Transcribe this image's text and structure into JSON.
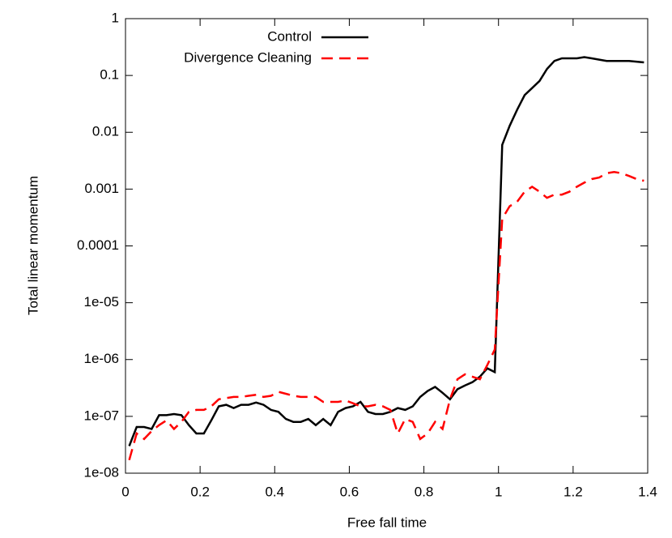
{
  "chart_data": {
    "type": "line",
    "xlabel": "Free fall time",
    "ylabel": "Total linear momentum",
    "xlim": [
      0,
      1.4
    ],
    "xticks": [
      0,
      0.2,
      0.4,
      0.6,
      0.8,
      1,
      1.2,
      1.4
    ],
    "ylim": [
      1e-08,
      1
    ],
    "ylog": true,
    "yticks": [
      {
        "value": 1e-08,
        "label": "1e-08"
      },
      {
        "value": 1e-07,
        "label": "1e-07"
      },
      {
        "value": 1e-06,
        "label": "1e-06"
      },
      {
        "value": 1e-05,
        "label": "1e-05"
      },
      0.0001,
      0.001,
      0.01,
      0.1,
      1
    ],
    "legend": "upper-center",
    "x": [
      0.01,
      0.03,
      0.05,
      0.07,
      0.09,
      0.11,
      0.13,
      0.15,
      0.17,
      0.19,
      0.21,
      0.23,
      0.25,
      0.27,
      0.29,
      0.31,
      0.33,
      0.35,
      0.37,
      0.39,
      0.41,
      0.43,
      0.45,
      0.47,
      0.49,
      0.51,
      0.53,
      0.55,
      0.57,
      0.59,
      0.61,
      0.63,
      0.65,
      0.67,
      0.69,
      0.71,
      0.73,
      0.75,
      0.77,
      0.79,
      0.81,
      0.83,
      0.85,
      0.87,
      0.89,
      0.91,
      0.93,
      0.95,
      0.97,
      0.99,
      1.01,
      1.03,
      1.05,
      1.07,
      1.09,
      1.11,
      1.13,
      1.15,
      1.17,
      1.19,
      1.21,
      1.23,
      1.25,
      1.27,
      1.29,
      1.31,
      1.33,
      1.35,
      1.37,
      1.39
    ],
    "series": [
      {
        "name": "Control",
        "color": "#000000",
        "style": "solid",
        "values": [
          3e-08,
          6.5e-08,
          6.5e-08,
          6e-08,
          1.05e-07,
          1.05e-07,
          1.1e-07,
          1.05e-07,
          7e-08,
          5e-08,
          5e-08,
          8.5e-08,
          1.5e-07,
          1.6e-07,
          1.4e-07,
          1.6e-07,
          1.6e-07,
          1.75e-07,
          1.6e-07,
          1.3e-07,
          1.2e-07,
          9e-08,
          8e-08,
          8e-08,
          9e-08,
          7e-08,
          9e-08,
          7e-08,
          1.2e-07,
          1.4e-07,
          1.5e-07,
          1.8e-07,
          1.2e-07,
          1.1e-07,
          1.1e-07,
          1.2e-07,
          1.4e-07,
          1.3e-07,
          1.5e-07,
          2.2e-07,
          2.8e-07,
          3.3e-07,
          2.6e-07,
          2e-07,
          3e-07,
          3.5e-07,
          4e-07,
          5e-07,
          7e-07,
          6e-07,
          0.006,
          0.013,
          0.025,
          0.045,
          0.06,
          0.08,
          0.13,
          0.18,
          0.2,
          0.2,
          0.2,
          0.21,
          0.2,
          0.19,
          0.18,
          0.18,
          0.18,
          0.18,
          0.175,
          0.17
        ]
      },
      {
        "name": "Divergence Cleaning",
        "color": "#ff0000",
        "style": "dashed",
        "values": [
          1.7e-08,
          5e-08,
          4e-08,
          5.5e-08,
          7e-08,
          8.5e-08,
          6e-08,
          8e-08,
          1.2e-07,
          1.3e-07,
          1.3e-07,
          1.5e-07,
          2e-07,
          2.1e-07,
          2.2e-07,
          2.2e-07,
          2.3e-07,
          2.4e-07,
          2.2e-07,
          2.3e-07,
          2.7e-07,
          2.5e-07,
          2.3e-07,
          2.2e-07,
          2.2e-07,
          2.2e-07,
          1.8e-07,
          1.8e-07,
          1.8e-07,
          1.9e-07,
          1.7e-07,
          1.5e-07,
          1.5e-07,
          1.6e-07,
          1.5e-07,
          1.3e-07,
          5e-08,
          9e-08,
          8e-08,
          4e-08,
          5e-08,
          8e-08,
          6e-08,
          2e-07,
          4.5e-07,
          5.5e-07,
          5e-07,
          4.5e-07,
          8e-07,
          1.5e-06,
          0.0003,
          0.0005,
          0.0006,
          0.0009,
          0.0011,
          0.0009,
          0.0007,
          0.0008,
          0.0008,
          0.0009,
          0.0011,
          0.0013,
          0.0015,
          0.0016,
          0.0019,
          0.002,
          0.0019,
          0.0017,
          0.0015,
          0.0014
        ]
      }
    ]
  }
}
